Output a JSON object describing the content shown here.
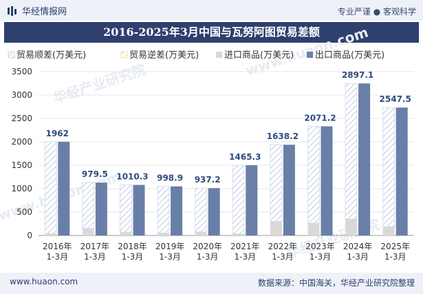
{
  "header": {
    "brand": "华经情报网",
    "slogan": "专业严谨 ● 客观科学"
  },
  "watermarks": [
    "华经产业研究院",
    "www.huaon.com"
  ],
  "footer": {
    "website": "www.huaon.com",
    "source": "数据来源：中国海关，华经产业研究院整理"
  },
  "colors": {
    "trade_surplus": "#c6d3e6",
    "trade_deficit": "#f3e3ae",
    "imports": "#d9d9d9",
    "exports": "#6a7fa8",
    "title_bg": "#2f3f6e"
  },
  "chart_data": {
    "type": "bar",
    "title": "2016-2025年3月中国与瓦努阿图贸易差额",
    "categories": [
      "2016年\n1-3月",
      "2017年\n1-3月",
      "2018年\n1-3月",
      "2019年\n1-3月",
      "2020年\n1-3月",
      "2021年\n1-3月",
      "2022年\n1-3月",
      "2023年\n1-3月",
      "2024年\n1-3月",
      "2025年\n1-3月"
    ],
    "series": [
      {
        "name": "贸易顺差(万美元)",
        "values": [
          1962,
          979.5,
          1010.3,
          998.9,
          937.2,
          1465.3,
          1638.2,
          2071.2,
          2897.1,
          2547.5
        ]
      },
      {
        "name": "贸易逆差(万美元)",
        "values": [
          0,
          0,
          0,
          0,
          0,
          0,
          0,
          0,
          0,
          0
        ]
      },
      {
        "name": "进口商品(万美元)",
        "values": [
          40,
          150,
          70,
          50,
          75,
          35,
          300,
          260,
          350,
          185
        ]
      },
      {
        "name": "出口商品(万美元)",
        "values": [
          2002,
          1129.5,
          1080.3,
          1048.9,
          1012.2,
          1500.3,
          1938.2,
          2331.2,
          3247.1,
          2732.5
        ]
      }
    ],
    "data_labels": [
      "1962",
      "979.5",
      "1010.3",
      "998.9",
      "937.2",
      "1465.3",
      "1638.2",
      "2071.2",
      "2897.1",
      "2547.5"
    ],
    "yticks": [
      "0",
      "500",
      "1000",
      "1500",
      "2000",
      "2500",
      "3000",
      "3500"
    ],
    "ylim": [
      0,
      3500
    ],
    "legend_position": "top",
    "grid": true
  }
}
